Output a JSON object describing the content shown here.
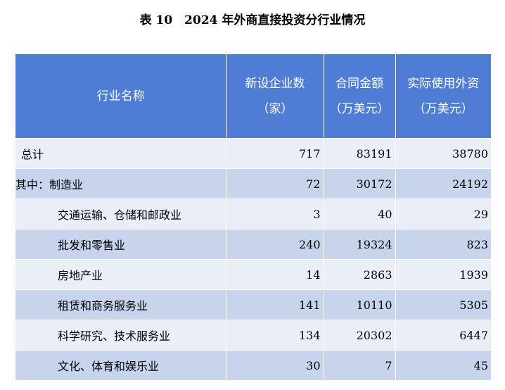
{
  "title": "表 10　2024 年外商直接投资分行业情况",
  "columns": [
    {
      "line1": "行业名称",
      "line2": ""
    },
    {
      "line1": "新设企业数",
      "line2": "（家）"
    },
    {
      "line1": "合同金额",
      "line2": "（万美元）"
    },
    {
      "line1": "实际使用外资",
      "line2": "（万美元）"
    }
  ],
  "rows": [
    {
      "name": "总计",
      "enterprises": "717",
      "contract": "83191",
      "actual": "38780"
    },
    {
      "name": "其中：制造业",
      "enterprises": "72",
      "contract": "30172",
      "actual": "24192"
    },
    {
      "name": "交通运输、仓储和邮政业",
      "enterprises": "3",
      "contract": "40",
      "actual": "29"
    },
    {
      "name": "批发和零售业",
      "enterprises": "240",
      "contract": "19324",
      "actual": "823"
    },
    {
      "name": "房地产业",
      "enterprises": "14",
      "contract": "2863",
      "actual": "1939"
    },
    {
      "name": "租赁和商务服务业",
      "enterprises": "141",
      "contract": "10110",
      "actual": "5305"
    },
    {
      "name": "科学研究、技术服务业",
      "enterprises": "134",
      "contract": "20302",
      "actual": "6447"
    },
    {
      "name": "文化、体育和娱乐业",
      "enterprises": "30",
      "contract": "7",
      "actual": "45"
    }
  ]
}
